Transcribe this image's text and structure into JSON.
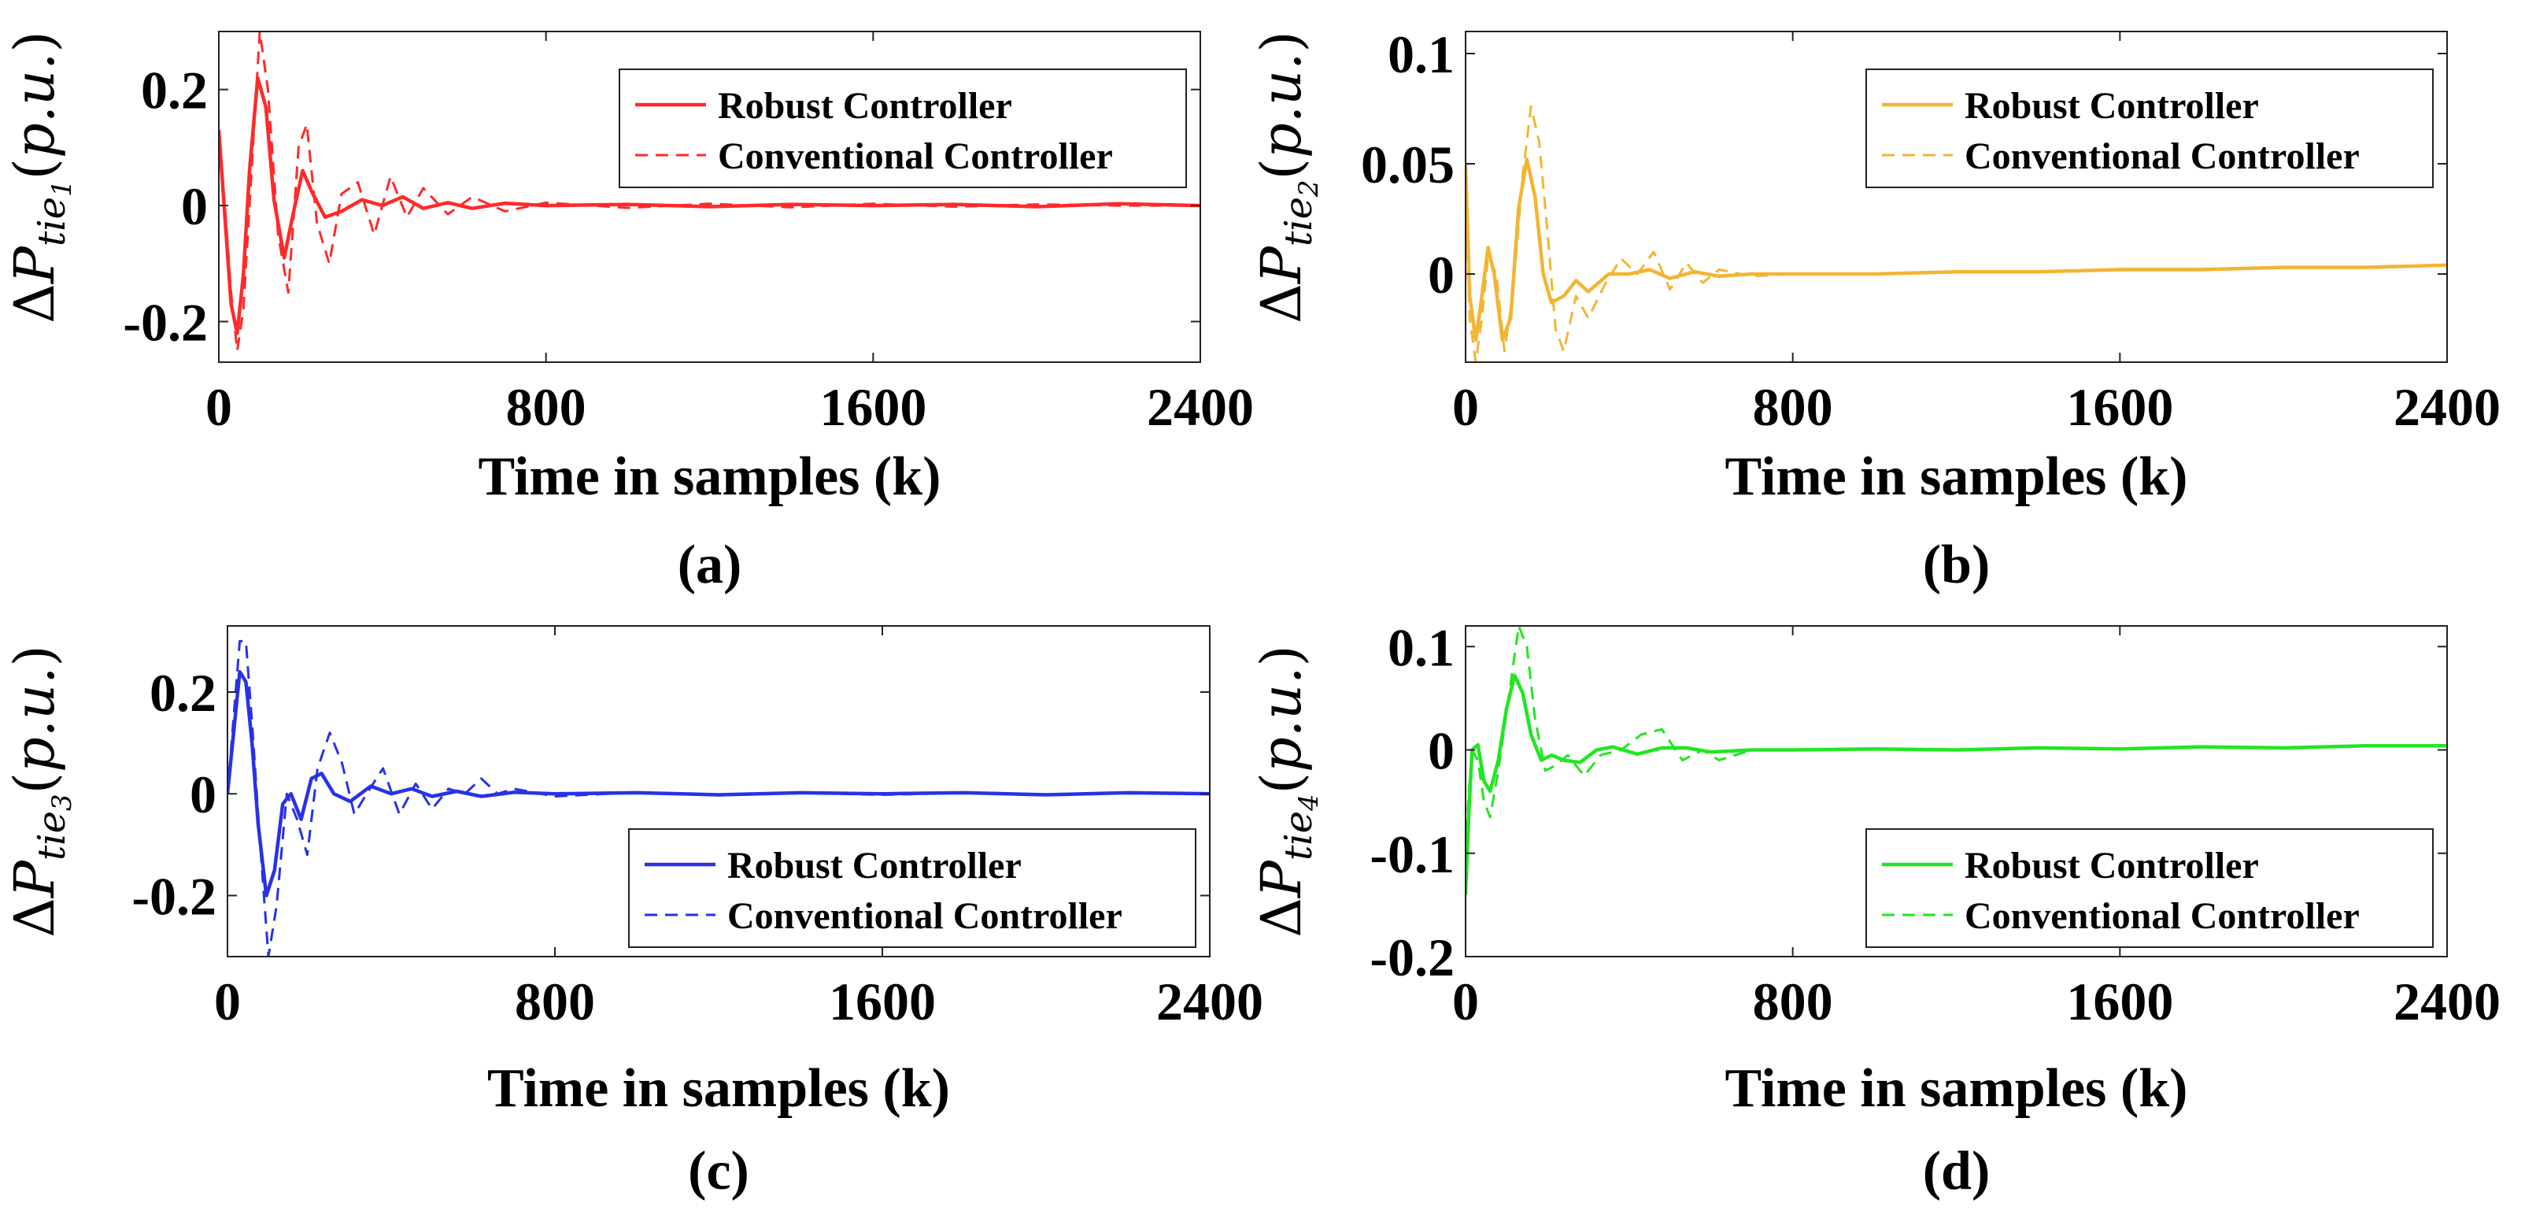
{
  "chart_data": [
    {
      "type": "line",
      "caption": "(a)",
      "xlabel": "Time in samples (k)",
      "ylabel": "ΔPtie1(p.u.)",
      "xlim": [
        0,
        2400
      ],
      "ylim": [
        -0.27,
        0.3
      ],
      "xticks": [
        "0",
        "800",
        "1600",
        "2400"
      ],
      "yticks": [
        {
          "v": 0.2,
          "label": "0.2"
        },
        {
          "v": 0,
          "label": "0"
        },
        {
          "v": -0.2,
          "label": "-0.2"
        }
      ],
      "color": "#ff2a2a",
      "legend": "top-right",
      "series": [
        {
          "name": "Robust Controller",
          "style": "solid",
          "x": [
            0,
            15,
            30,
            45,
            60,
            75,
            95,
            115,
            135,
            160,
            180,
            205,
            230,
            260,
            300,
            350,
            400,
            450,
            500,
            560,
            620,
            700,
            800,
            1000,
            1200,
            1400,
            1600,
            1800,
            2000,
            2200,
            2400
          ],
          "y": [
            0.13,
            -0.02,
            -0.17,
            -0.22,
            -0.12,
            0.06,
            0.22,
            0.17,
            0.01,
            -0.09,
            -0.02,
            0.06,
            0.02,
            -0.02,
            -0.01,
            0.01,
            0.0,
            0.015,
            -0.005,
            0.005,
            -0.005,
            0.004,
            0.0,
            0.002,
            -0.002,
            0.002,
            0.0,
            0.002,
            -0.002,
            0.003,
            0.0
          ]
        },
        {
          "name": "Conventional Controller",
          "style": "dashed",
          "x": [
            0,
            15,
            30,
            45,
            60,
            80,
            100,
            120,
            145,
            170,
            195,
            215,
            240,
            270,
            300,
            340,
            380,
            420,
            460,
            500,
            560,
            620,
            700,
            800,
            1000,
            1200,
            1400,
            1600,
            1800,
            2000,
            2200,
            2400
          ],
          "y": [
            0.1,
            0.0,
            -0.15,
            -0.25,
            -0.18,
            0.06,
            0.3,
            0.2,
            -0.05,
            -0.15,
            0.1,
            0.14,
            -0.03,
            -0.1,
            0.02,
            0.04,
            -0.05,
            0.05,
            -0.02,
            0.03,
            -0.015,
            0.015,
            -0.01,
            0.005,
            -0.004,
            0.003,
            -0.003,
            0.003,
            -0.002,
            0.002,
            0.0,
            0.0
          ]
        }
      ]
    },
    {
      "type": "line",
      "caption": "(b)",
      "xlabel": "Time in samples (k)",
      "ylabel": "ΔPtie2(p.u.)",
      "xlim": [
        0,
        2400
      ],
      "ylim": [
        -0.04,
        0.11
      ],
      "xticks": [
        "0",
        "800",
        "1600",
        "2400"
      ],
      "yticks": [
        {
          "v": 0.1,
          "label": "0.1"
        },
        {
          "v": 0.05,
          "label": "0.05"
        },
        {
          "v": 0,
          "label": "0"
        }
      ],
      "color": "#f2b533",
      "legend": "top-right",
      "series": [
        {
          "name": "Robust Controller",
          "style": "solid",
          "x": [
            0,
            10,
            25,
            40,
            55,
            70,
            90,
            110,
            130,
            150,
            170,
            190,
            210,
            240,
            270,
            300,
            350,
            400,
            450,
            500,
            560,
            620,
            700,
            800,
            1000,
            1200,
            1400,
            1600,
            1800,
            2000,
            2200,
            2400
          ],
          "y": [
            0.05,
            -0.01,
            -0.03,
            -0.01,
            0.012,
            0.0,
            -0.03,
            -0.02,
            0.03,
            0.052,
            0.035,
            0.0,
            -0.013,
            -0.01,
            -0.003,
            -0.008,
            0.0,
            0.0,
            0.002,
            -0.002,
            0.001,
            -0.001,
            0.0,
            0.0,
            0.0,
            0.001,
            0.001,
            0.002,
            0.002,
            0.003,
            0.003,
            0.004
          ]
        },
        {
          "name": "Conventional Controller",
          "style": "dashed",
          "x": [
            0,
            10,
            25,
            40,
            55,
            75,
            95,
            115,
            140,
            160,
            180,
            200,
            220,
            240,
            270,
            300,
            340,
            380,
            420,
            460,
            500,
            540,
            580,
            620,
            700,
            800,
            1000,
            1200,
            1400,
            1600,
            1800,
            2000,
            2200,
            2400
          ],
          "y": [
            0.03,
            -0.02,
            -0.04,
            -0.02,
            0.008,
            0.0,
            -0.035,
            -0.01,
            0.045,
            0.076,
            0.06,
            0.02,
            -0.025,
            -0.035,
            -0.01,
            -0.02,
            -0.005,
            0.007,
            0.0,
            0.01,
            -0.007,
            0.005,
            -0.004,
            0.002,
            -0.001,
            0.0,
            0.0,
            0.001,
            0.001,
            0.002,
            0.002,
            0.003,
            0.003,
            0.004
          ]
        }
      ]
    },
    {
      "type": "line",
      "caption": "(c)",
      "xlabel": "Time in samples (k)",
      "ylabel": "ΔPtie3(p.u.)",
      "xlim": [
        0,
        2400
      ],
      "ylim": [
        -0.32,
        0.33
      ],
      "xticks": [
        "0",
        "800",
        "1600",
        "2400"
      ],
      "yticks": [
        {
          "v": 0.2,
          "label": "0.2"
        },
        {
          "v": 0,
          "label": "0"
        },
        {
          "v": -0.2,
          "label": "-0.2"
        }
      ],
      "color": "#2832e6",
      "legend": "bottom-right",
      "series": [
        {
          "name": "Robust Controller",
          "style": "solid",
          "x": [
            0,
            15,
            30,
            45,
            60,
            75,
            95,
            115,
            135,
            155,
            180,
            205,
            230,
            260,
            300,
            350,
            400,
            450,
            500,
            560,
            620,
            700,
            800,
            1000,
            1200,
            1400,
            1600,
            1800,
            2000,
            2200,
            2400
          ],
          "y": [
            0.0,
            0.12,
            0.24,
            0.22,
            0.1,
            -0.06,
            -0.2,
            -0.15,
            -0.02,
            0.0,
            -0.05,
            0.03,
            0.04,
            0.0,
            -0.015,
            0.015,
            0.0,
            0.01,
            -0.005,
            0.005,
            -0.005,
            0.003,
            0.0,
            0.002,
            -0.002,
            0.002,
            0.0,
            0.002,
            -0.002,
            0.002,
            0.0
          ]
        },
        {
          "name": "Conventional Controller",
          "style": "dashed",
          "x": [
            0,
            15,
            30,
            45,
            60,
            80,
            100,
            120,
            145,
            170,
            195,
            220,
            250,
            280,
            310,
            340,
            380,
            420,
            460,
            500,
            540,
            580,
            620,
            660,
            700,
            800,
            1000,
            1200,
            1400,
            1600,
            1800,
            2000,
            2200,
            2400
          ],
          "y": [
            0.0,
            0.15,
            0.3,
            0.3,
            0.14,
            -0.1,
            -0.32,
            -0.22,
            0.0,
            -0.05,
            -0.12,
            0.05,
            0.12,
            0.06,
            -0.04,
            0.0,
            0.05,
            -0.04,
            0.02,
            -0.03,
            0.01,
            0.0,
            0.03,
            0.0,
            0.01,
            -0.005,
            0.003,
            -0.003,
            0.002,
            -0.002,
            0.002,
            -0.001,
            0.001,
            0.0
          ]
        }
      ]
    },
    {
      "type": "line",
      "caption": "(d)",
      "xlabel": "Time in samples (k)",
      "ylabel": "ΔPtie4(p.u.)",
      "xlim": [
        0,
        2400
      ],
      "ylim": [
        -0.2,
        0.12
      ],
      "xticks": [
        "0",
        "800",
        "1600",
        "2400"
      ],
      "yticks": [
        {
          "v": 0.1,
          "label": "0.1"
        },
        {
          "v": 0,
          "label": "0"
        },
        {
          "v": -0.1,
          "label": "-0.1"
        },
        {
          "v": -0.2,
          "label": "-0.2"
        }
      ],
      "color": "#22e622",
      "legend": "bottom-right",
      "series": [
        {
          "name": "Robust Controller",
          "style": "solid",
          "x": [
            0,
            8,
            16,
            30,
            45,
            60,
            80,
            100,
            120,
            140,
            160,
            185,
            210,
            240,
            280,
            320,
            360,
            420,
            480,
            540,
            600,
            700,
            800,
            1000,
            1200,
            1400,
            1600,
            1800,
            2000,
            2200,
            2400
          ],
          "y": [
            -0.14,
            -0.06,
            0.0,
            0.005,
            -0.03,
            -0.04,
            -0.01,
            0.04,
            0.072,
            0.055,
            0.015,
            -0.01,
            -0.005,
            -0.01,
            -0.012,
            0.0,
            0.003,
            -0.004,
            0.002,
            0.002,
            -0.002,
            0.0,
            0.0,
            0.001,
            0.0,
            0.002,
            0.001,
            0.003,
            0.002,
            0.004,
            0.004
          ]
        },
        {
          "name": "Conventional Controller",
          "style": "dashed",
          "x": [
            0,
            8,
            16,
            30,
            45,
            60,
            80,
            105,
            130,
            150,
            170,
            195,
            220,
            250,
            290,
            330,
            380,
            430,
            480,
            530,
            580,
            620,
            700,
            800,
            1000,
            1200,
            1400,
            1600,
            1800,
            2000,
            2200,
            2400
          ],
          "y": [
            -0.1,
            -0.04,
            0.0,
            -0.01,
            -0.05,
            -0.065,
            -0.02,
            0.05,
            0.12,
            0.1,
            0.03,
            -0.02,
            -0.015,
            -0.005,
            -0.025,
            -0.005,
            0.0,
            0.015,
            0.02,
            -0.01,
            0.0,
            -0.01,
            0.0,
            0.0,
            0.001,
            0.0,
            0.002,
            0.001,
            0.003,
            0.002,
            0.004,
            0.004
          ]
        }
      ]
    }
  ]
}
